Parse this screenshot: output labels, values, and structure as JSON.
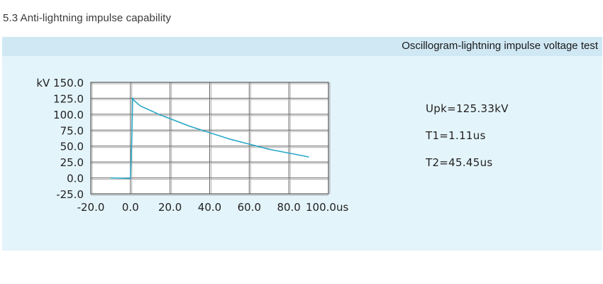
{
  "section_title": "5.3 Anti-lightning impulse capability",
  "panel": {
    "header": "Oscillogram-lightning impulse voltage test"
  },
  "parameters": [
    {
      "label": "Upk=125.33kV"
    },
    {
      "label": "T1=1.11us"
    },
    {
      "label": "T2=45.45us"
    }
  ],
  "chart_data": {
    "type": "line",
    "title": "",
    "xlabel": "",
    "ylabel": "",
    "x_unit": "us",
    "y_unit": "kV",
    "xlim": [
      -20.0,
      100.0
    ],
    "ylim": [
      -25.0,
      150.0
    ],
    "x_ticks": [
      -20.0,
      0.0,
      20.0,
      40.0,
      60.0,
      80.0,
      100.0
    ],
    "y_ticks": [
      -25.0,
      0.0,
      25.0,
      50.0,
      75.0,
      100.0,
      125.0,
      150.0
    ],
    "x_tick_labels": [
      "-20.0",
      "0.0",
      "20.0",
      "40.0",
      "60.0",
      "80.0",
      "100.0us"
    ],
    "y_tick_labels": [
      "-25.0",
      "0.0",
      "25.0",
      "50.0",
      "75.0",
      "100.0",
      "125.0",
      "kV 150.0"
    ],
    "grid": true,
    "line_color": "#2aa8c8",
    "series": [
      {
        "x": [
          -10.0,
          -4.0,
          0.0,
          0.7,
          1.11,
          2.0,
          5.0,
          10.0,
          15.0,
          20.0,
          30.0,
          40.0,
          50.0,
          60.0,
          70.0,
          80.0,
          90.0
        ],
        "y": [
          0.0,
          -0.5,
          -1.0,
          60.0,
          125.33,
          121.0,
          113.0,
          106.0,
          99.0,
          93.0,
          81.0,
          71.0,
          61.0,
          53.0,
          45.0,
          39.0,
          33.0
        ]
      }
    ]
  }
}
